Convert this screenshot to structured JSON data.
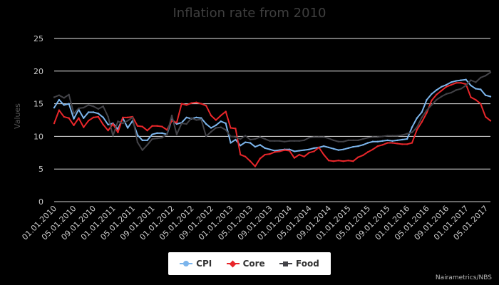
{
  "chart_data": {
    "type": "line",
    "title": "Inflation rate from 2010",
    "xlabel": "",
    "ylabel": "Values",
    "ylim": [
      0,
      25
    ],
    "yticks": [
      0,
      5,
      10,
      15,
      20,
      25
    ],
    "grid": true,
    "legend_position": "bottom-center",
    "credit": "Nairametrics/NBS",
    "categories": [
      "01.01.2010",
      "",
      "",
      "",
      "05.01.2010",
      "",
      "",
      "",
      "09.01.2010",
      "",
      "",
      "",
      "01.01.2011",
      "",
      "",
      "",
      "05.01.2011",
      "",
      "",
      "",
      "09.01.2011",
      "",
      "",
      "",
      "01.01.2012",
      "",
      "",
      "",
      "05.01.2012",
      "",
      "",
      "",
      "09.01.2012",
      "",
      "",
      "",
      "01.01.2013",
      "",
      "",
      "",
      "05.01.2013",
      "",
      "",
      "",
      "09.01.2013",
      "",
      "",
      "",
      "01.01.2014",
      "",
      "",
      "",
      "05.01.2014",
      "",
      "",
      "",
      "09.01.2014",
      "",
      "",
      "",
      "01.01.2015",
      "",
      "",
      "",
      "05.01.2015",
      "",
      "",
      "",
      "09.01.2015",
      "",
      "",
      "",
      "01.01.2016",
      "",
      "",
      "",
      "05.01.2016",
      "",
      "",
      "",
      "09.01.2016",
      "",
      "",
      "",
      "01.01.2017",
      "",
      "",
      "",
      "05.01.2017",
      ""
    ],
    "series": [
      {
        "name": "CPI",
        "color": "#7cb5ec",
        "marker": "circle",
        "values": [
          14.4,
          15.6,
          14.8,
          15.0,
          12.7,
          14.1,
          12.8,
          13.7,
          13.7,
          13.5,
          12.9,
          11.8,
          12.0,
          11.1,
          12.8,
          11.3,
          12.4,
          10.2,
          9.4,
          9.4,
          10.3,
          10.5,
          10.5,
          10.3,
          12.6,
          11.9,
          12.1,
          12.9,
          12.7,
          12.9,
          12.8,
          11.9,
          11.3,
          11.7,
          12.3,
          12.0,
          9.0,
          9.5,
          8.6,
          9.1,
          9.0,
          8.4,
          8.7,
          8.2,
          8.0,
          7.8,
          7.9,
          8.0,
          8.0,
          7.7,
          7.8,
          7.9,
          8.0,
          8.2,
          8.3,
          8.5,
          8.3,
          8.1,
          7.9,
          8.0,
          8.2,
          8.4,
          8.5,
          8.7,
          9.0,
          9.2,
          9.2,
          9.3,
          9.4,
          9.3,
          9.4,
          9.5,
          9.6,
          11.4,
          12.8,
          13.7,
          15.6,
          16.5,
          17.1,
          17.6,
          17.9,
          18.3,
          18.5,
          18.6,
          18.7,
          17.8,
          17.3,
          17.2,
          16.3,
          16.1
        ]
      },
      {
        "name": "Core",
        "color": "#e8262a",
        "marker": "diamond",
        "values": [
          12.0,
          14.0,
          13.0,
          12.8,
          11.7,
          12.8,
          11.4,
          12.4,
          12.9,
          13.0,
          11.8,
          10.9,
          11.9,
          10.6,
          12.9,
          12.9,
          13.0,
          11.6,
          11.5,
          10.9,
          11.6,
          11.6,
          11.5,
          11.0,
          12.4,
          12.1,
          15.0,
          14.8,
          15.1,
          15.2,
          15.0,
          14.7,
          13.2,
          12.5,
          13.2,
          13.8,
          11.3,
          11.2,
          7.2,
          6.9,
          6.2,
          5.4,
          6.6,
          7.2,
          7.3,
          7.6,
          7.7,
          7.9,
          7.8,
          6.7,
          7.2,
          6.9,
          7.5,
          7.7,
          8.3,
          7.2,
          6.3,
          6.2,
          6.3,
          6.2,
          6.3,
          6.2,
          6.8,
          7.1,
          7.6,
          8.0,
          8.5,
          8.7,
          9.0,
          9.0,
          8.9,
          8.8,
          8.8,
          9.0,
          11.0,
          12.2,
          13.6,
          15.5,
          16.4,
          17.0,
          17.6,
          17.9,
          18.2,
          18.2,
          18.0,
          16.0,
          15.6,
          15.0,
          13.0,
          12.4
        ]
      },
      {
        "name": "Food",
        "color": "#434348",
        "marker": "square",
        "values": [
          16.0,
          16.3,
          15.9,
          16.4,
          13.5,
          14.3,
          14.4,
          14.8,
          14.6,
          14.2,
          14.6,
          13.0,
          10.1,
          12.3,
          12.0,
          12.4,
          12.9,
          9.1,
          7.9,
          8.7,
          9.6,
          9.7,
          9.8,
          10.3,
          13.2,
          10.3,
          12.0,
          11.9,
          12.8,
          12.5,
          12.6,
          10.0,
          10.7,
          11.3,
          11.4,
          11.0,
          10.0,
          9.9,
          9.6,
          10.1,
          9.5,
          9.6,
          9.9,
          9.6,
          9.3,
          9.3,
          9.3,
          9.2,
          9.3,
          9.3,
          9.3,
          9.4,
          9.8,
          9.9,
          9.9,
          9.9,
          9.7,
          9.4,
          9.2,
          9.2,
          9.4,
          9.4,
          9.4,
          9.6,
          9.8,
          9.9,
          9.9,
          10.0,
          10.1,
          10.1,
          10.1,
          10.2,
          10.4,
          10.6,
          11.4,
          12.9,
          14.0,
          14.8,
          15.6,
          16.1,
          16.5,
          16.7,
          17.1,
          17.3,
          17.8,
          18.6,
          18.3,
          19.0,
          19.3,
          19.8
        ]
      }
    ]
  }
}
